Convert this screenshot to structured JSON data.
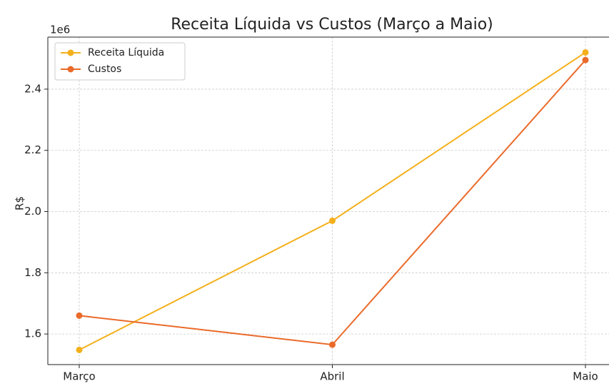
{
  "chart_data": {
    "type": "line",
    "title": "Receita Líquida vs Custos (Março a Maio)",
    "ylabel": "R$",
    "y_offset_label": "1e6",
    "categories": [
      "Março",
      "Abril",
      "Maio"
    ],
    "series": [
      {
        "name": "Receita Líquida",
        "color": "#f4b01b",
        "values": [
          1548000,
          1970000,
          2520000
        ]
      },
      {
        "name": "Custos",
        "color": "#ea6a2a",
        "values": [
          1660000,
          1565000,
          2495000
        ]
      }
    ],
    "ylim": [
      1500000,
      2570000
    ],
    "yticks": [
      {
        "value": 1600000,
        "label": "1.6"
      },
      {
        "value": 1800000,
        "label": "1.8"
      },
      {
        "value": 2000000,
        "label": "2.0"
      },
      {
        "value": 2200000,
        "label": "2.2"
      },
      {
        "value": 2400000,
        "label": "2.4"
      }
    ],
    "grid": true,
    "legend": "upper-left"
  }
}
